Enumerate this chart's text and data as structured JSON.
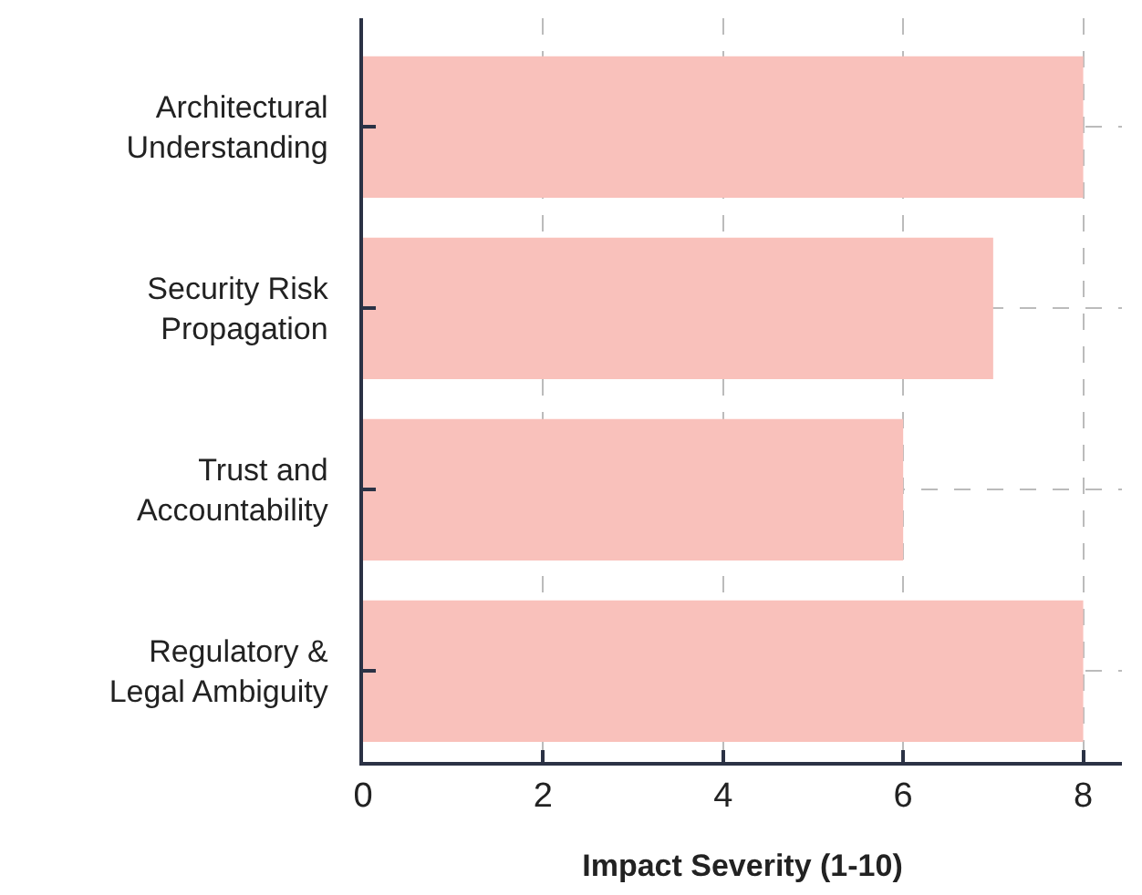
{
  "chart_data": {
    "type": "bar",
    "orientation": "horizontal",
    "xlabel": "Impact Severity (1-10)",
    "categories": [
      "Architectural\nUnderstanding",
      "Security Risk\nPropagation",
      "Trust and\nAccountability",
      "Regulatory &\nLegal Ambiguity"
    ],
    "values": [
      8,
      7,
      6,
      8
    ],
    "color": "#f9c1bb",
    "xlim": [
      0,
      8.43
    ],
    "xticks": [
      0,
      2,
      4,
      6,
      8
    ],
    "grid": true,
    "legend": false
  }
}
